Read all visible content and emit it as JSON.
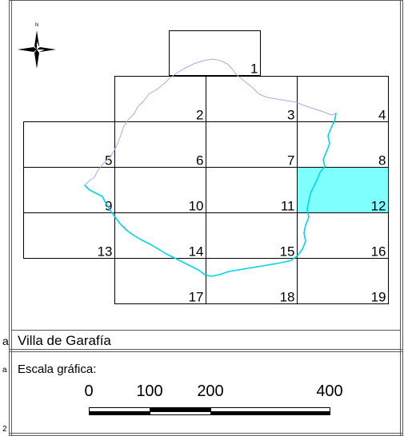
{
  "north_arrow": {
    "label": "N"
  },
  "sheets": [
    {
      "label": "1",
      "highlighted": false
    },
    {
      "label": "2",
      "highlighted": false
    },
    {
      "label": "3",
      "highlighted": false
    },
    {
      "label": "4",
      "highlighted": false
    },
    {
      "label": "5",
      "highlighted": false
    },
    {
      "label": "6",
      "highlighted": false
    },
    {
      "label": "7",
      "highlighted": false
    },
    {
      "label": "8",
      "highlighted": false
    },
    {
      "label": "9",
      "highlighted": false
    },
    {
      "label": "10",
      "highlighted": false
    },
    {
      "label": "11",
      "highlighted": false
    },
    {
      "label": "12",
      "highlighted": true
    },
    {
      "label": "13",
      "highlighted": false
    },
    {
      "label": "14",
      "highlighted": false
    },
    {
      "label": "15",
      "highlighted": false
    },
    {
      "label": "16",
      "highlighted": false
    },
    {
      "label": "17",
      "highlighted": false
    },
    {
      "label": "18",
      "highlighted": false
    },
    {
      "label": "19",
      "highlighted": false
    }
  ],
  "municipality": {
    "name": "Villa de Garafía"
  },
  "scale_bar": {
    "title": "Escala gráfica:",
    "ticks": [
      "0",
      "100",
      "200",
      "400"
    ]
  },
  "edge_fragments": {
    "row1": "a",
    "row2": "a",
    "row3": "2"
  },
  "colors": {
    "highlight": "#80ffff",
    "coast": "#a9a9ea",
    "coast_cyan": "#00d4e6",
    "frame": "#5a5a5a"
  }
}
